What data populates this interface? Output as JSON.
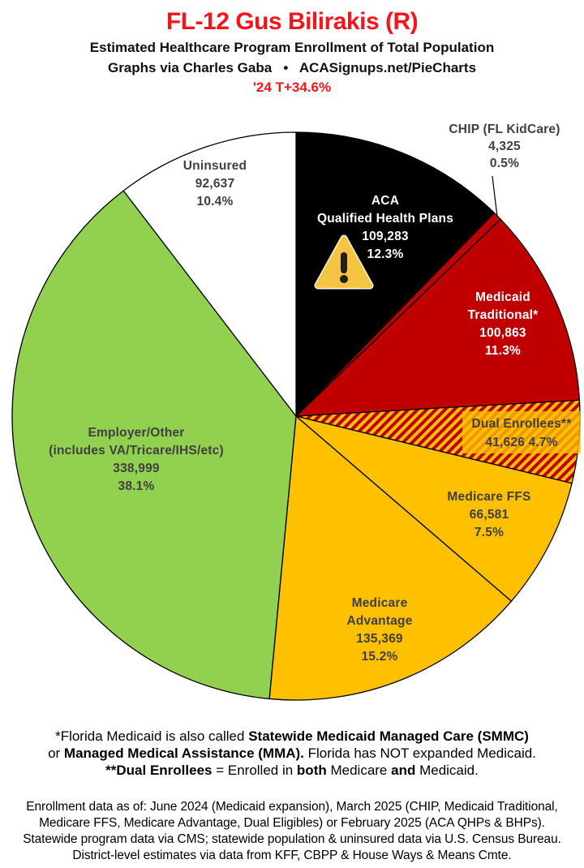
{
  "header": {
    "title": "FL-12 Gus Bilirakis (R)",
    "subtitle1": "Estimated Healthcare Program Enrollment of Total Population",
    "subtitle2": "Graphs via Charles Gaba   •   ACASignups.net/PieCharts",
    "subtitle3": "'24 T+34.6%"
  },
  "colors": {
    "accent_red": "#FA1319",
    "slice_red": "#C00000",
    "slice_gold": "#FFC000",
    "slice_green": "#92D050",
    "slice_black": "#000000",
    "slice_white": "#FFFFFF",
    "label_gray": "#3F3F3F"
  },
  "chart_data": {
    "type": "pie",
    "start_angle_deg": 0,
    "direction": "clockwise",
    "title": "FL-12 Gus Bilirakis (R) — Estimated Healthcare Program Enrollment of Total Population",
    "slices": [
      {
        "id": "aca",
        "name": "ACA Qualified Health Plans",
        "value": 109283,
        "pct": 12.3,
        "color": "#000000",
        "icon": "warning-icon",
        "label_lines": [
          "ACA",
          "Qualified Health Plans",
          "109,283",
          "12.3%"
        ]
      },
      {
        "id": "chip",
        "name": "CHIP (FL KidCare)",
        "value": 4325,
        "pct": 0.5,
        "color": "#C00000",
        "callout": true,
        "label_lines": [
          "CHIP (FL KidCare)",
          "4,325",
          "0.5%"
        ]
      },
      {
        "id": "medicaid-traditional",
        "name": "Medicaid Traditional*",
        "value": 100863,
        "pct": 11.3,
        "color": "#C00000",
        "label_lines": [
          "Medicaid",
          "Traditional*",
          "100,863",
          "11.3%"
        ]
      },
      {
        "id": "dual-enrollees",
        "name": "Dual Enrollees**",
        "value": 41626,
        "pct": 4.7,
        "color": "pattern:red-gold-hatch",
        "label_lines": [
          "Dual Enrollees**",
          "41,626 4.7%"
        ]
      },
      {
        "id": "medicare-ffs",
        "name": "Medicare FFS",
        "value": 66581,
        "pct": 7.5,
        "color": "#FFC000",
        "label_lines": [
          "Medicare FFS",
          "66,581",
          "7.5%"
        ]
      },
      {
        "id": "medicare-advantage",
        "name": "Medicare Advantage",
        "value": 135369,
        "pct": 15.2,
        "color": "#FFC000",
        "label_lines": [
          "Medicare",
          "Advantage",
          "135,369",
          "15.2%"
        ]
      },
      {
        "id": "employer-other",
        "name": "Employer/Other (includes VA/Tricare/IHS/etc)",
        "value": 338999,
        "pct": 38.1,
        "color": "#92D050",
        "label_lines": [
          "Employer/Other",
          "(includes VA/Tricare/IHS/etc)",
          "338,999",
          "38.1%"
        ]
      },
      {
        "id": "uninsured",
        "name": "Uninsured",
        "value": 92637,
        "pct": 10.4,
        "color": "#FFFFFF",
        "label_lines": [
          "Uninsured",
          "92,637",
          "10.4%"
        ]
      }
    ]
  },
  "footnote_rich": {
    "line1": [
      {
        "t": "*Florida Medicaid is also called ",
        "b": false
      },
      {
        "t": "Statewide Medicaid Managed Care (SMMC)",
        "b": true
      }
    ],
    "line2": [
      {
        "t": "or ",
        "b": false
      },
      {
        "t": "Managed Medical Assistance (MMA).",
        "b": true
      },
      {
        "t": " Florida has NOT expanded Medicaid.",
        "b": false
      }
    ],
    "line3": [
      {
        "t": "**Dual Enrollees",
        "b": true
      },
      {
        "t": " = Enrolled in ",
        "b": false
      },
      {
        "t": "both",
        "b": true
      },
      {
        "t": " Medicare ",
        "b": false
      },
      {
        "t": "and",
        "b": true
      },
      {
        "t": " Medicaid.",
        "b": false
      }
    ]
  },
  "sources": {
    "line1": "Enrollment data as of: June 2024 (Medicaid expansion), March 2025 (CHIP, Medicaid Traditional,",
    "line2": "Medicare FFS, Medicare Advantage, Dual Eligibles) or February 2025 (ACA QHPs & BHPs).",
    "line3": "Statewide program data via CMS; statewide population & uninsured data via U.S. Census Bureau.",
    "line4": "District-level estimates via data from KFF, CBPP & House Ways & Means Cmte."
  }
}
